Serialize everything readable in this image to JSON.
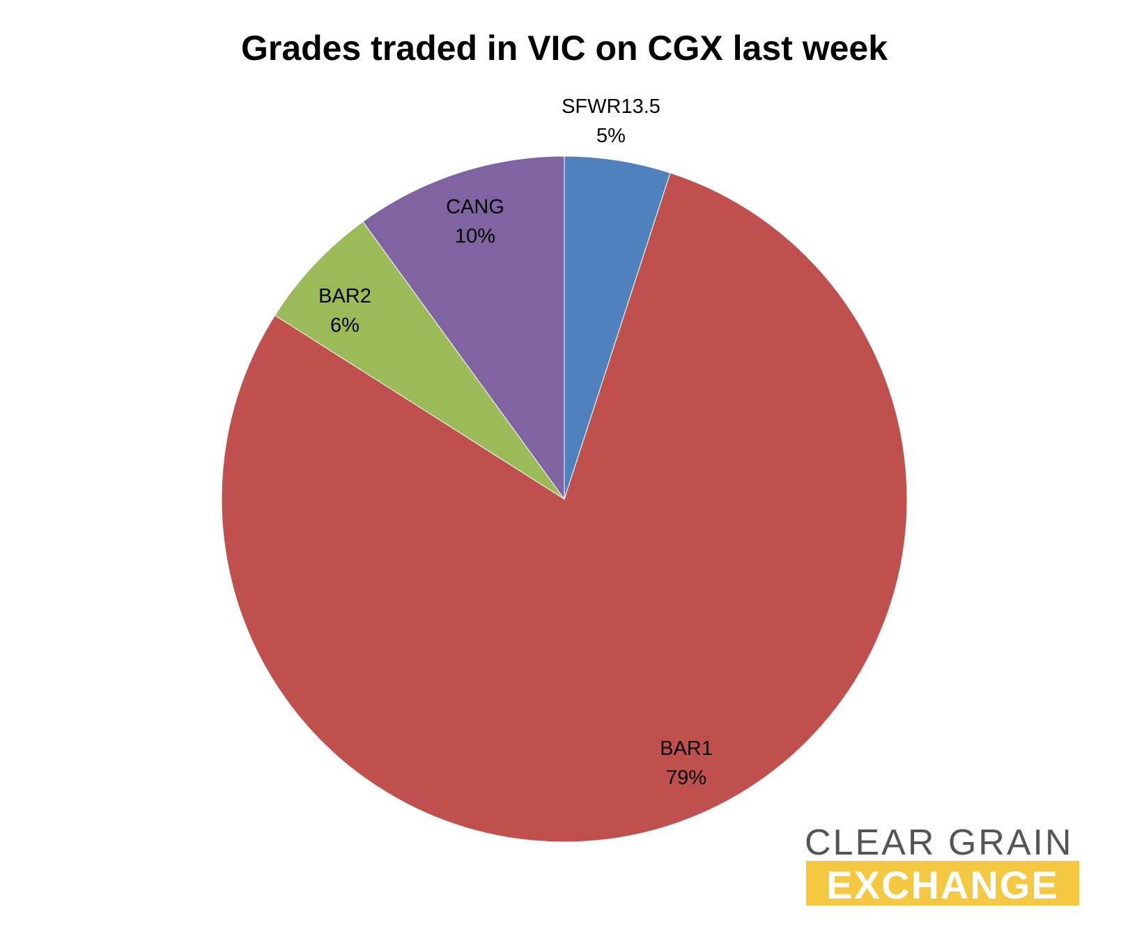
{
  "chart_data": {
    "type": "pie",
    "title": "Grades traded in VIC on CGX last week",
    "start_angle_deg": 0,
    "direction": "clockwise",
    "slices": [
      {
        "label": "SFWR13.5",
        "value": 5,
        "value_label": "5%",
        "color": "#4F81BD"
      },
      {
        "label": "BAR1",
        "value": 79,
        "value_label": "79%",
        "color": "#C0504D"
      },
      {
        "label": "BAR2",
        "value": 6,
        "value_label": "6%",
        "color": "#9BBB59"
      },
      {
        "label": "CANG",
        "value": 10,
        "value_label": "10%",
        "color": "#8064A2"
      }
    ]
  },
  "logo": {
    "line1": "CLEAR GRAIN",
    "line2": "EXCHANGE",
    "line1_color": "#555555",
    "line2_bg_color": "#F5C842"
  }
}
